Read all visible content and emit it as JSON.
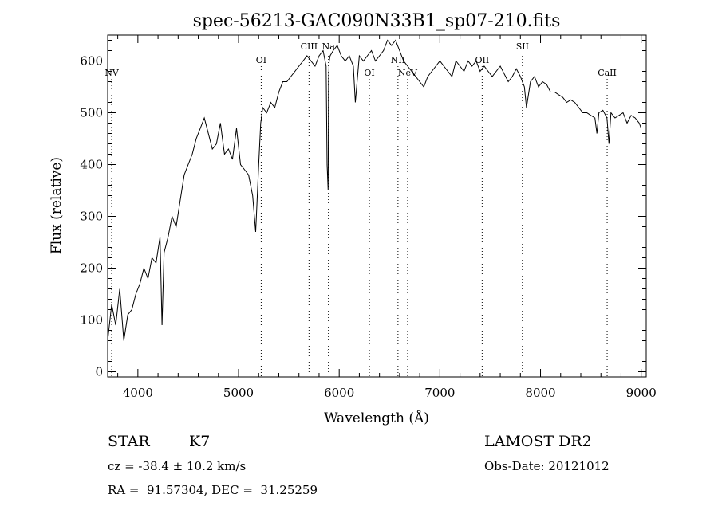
{
  "chart_data": {
    "type": "line",
    "title": "spec-56213-GAC090N33B1_sp07-210.fits",
    "xlabel": "Wavelength (Å)",
    "ylabel": "Flux (relative)",
    "xlim": [
      3700,
      9050
    ],
    "ylim": [
      -10,
      650
    ],
    "xticks": [
      4000,
      5000,
      6000,
      7000,
      8000,
      9000
    ],
    "yticks": [
      0,
      100,
      200,
      300,
      400,
      500,
      600
    ],
    "grid": false,
    "line_color": "#000000",
    "series": [
      {
        "x": [
          3700,
          3740,
          3780,
          3820,
          3860,
          3900,
          3940,
          3980,
          4020,
          4060,
          4100,
          4140,
          4180,
          4220,
          4240,
          4260,
          4300,
          4340,
          4380,
          4420,
          4460,
          4500,
          4540,
          4580,
          4620,
          4660,
          4700,
          4740,
          4780,
          4820,
          4860,
          4900,
          4940,
          4980,
          5020,
          5060,
          5100,
          5140,
          5170,
          5200,
          5220,
          5240,
          5280,
          5320,
          5360,
          5400,
          5440,
          5480,
          5520,
          5560,
          5600,
          5640,
          5680,
          5720,
          5760,
          5800,
          5840,
          5870,
          5880,
          5890,
          5895,
          5900,
          5910,
          5940,
          5980,
          6020,
          6060,
          6100,
          6140,
          6160,
          6200,
          6240,
          6280,
          6320,
          6360,
          6400,
          6440,
          6480,
          6520,
          6560,
          6600,
          6640,
          6680,
          6720,
          6760,
          6800,
          6840,
          6880,
          6920,
          6960,
          7000,
          7040,
          7080,
          7120,
          7160,
          7200,
          7240,
          7280,
          7320,
          7360,
          7400,
          7440,
          7480,
          7520,
          7560,
          7600,
          7640,
          7680,
          7720,
          7760,
          7800,
          7840,
          7860,
          7900,
          7940,
          7980,
          8020,
          8060,
          8100,
          8140,
          8180,
          8220,
          8260,
          8300,
          8340,
          8380,
          8420,
          8460,
          8500,
          8540,
          8560,
          8580,
          8620,
          8660,
          8680,
          8700,
          8740,
          8780,
          8820,
          8860,
          8900,
          8940,
          8980,
          9000
        ],
        "y": [
          60,
          130,
          90,
          160,
          60,
          110,
          120,
          150,
          170,
          200,
          180,
          220,
          210,
          260,
          90,
          230,
          260,
          300,
          280,
          330,
          380,
          400,
          420,
          450,
          470,
          490,
          460,
          430,
          440,
          480,
          420,
          430,
          410,
          470,
          400,
          390,
          380,
          340,
          270,
          400,
          480,
          510,
          500,
          520,
          510,
          540,
          560,
          560,
          570,
          580,
          590,
          600,
          610,
          600,
          590,
          610,
          620,
          590,
          400,
          350,
          560,
          600,
          610,
          620,
          630,
          610,
          600,
          610,
          590,
          520,
          610,
          600,
          610,
          620,
          600,
          610,
          620,
          640,
          630,
          640,
          620,
          600,
          590,
          580,
          570,
          560,
          550,
          570,
          580,
          590,
          600,
          590,
          580,
          570,
          600,
          590,
          580,
          600,
          590,
          600,
          580,
          590,
          580,
          570,
          580,
          590,
          575,
          560,
          570,
          585,
          570,
          550,
          510,
          560,
          570,
          550,
          560,
          555,
          540,
          540,
          535,
          530,
          520,
          525,
          520,
          510,
          500,
          500,
          495,
          490,
          460,
          500,
          505,
          490,
          440,
          500,
          490,
          495,
          500,
          480,
          495,
          490,
          480,
          470
        ]
      }
    ],
    "line_labels": [
      {
        "label": "NV",
        "x": 3740,
        "row": 2
      },
      {
        "label": "OI",
        "x": 5225,
        "row": 1
      },
      {
        "label": "CIII",
        "x": 5700,
        "row": 0
      },
      {
        "label": "Na",
        "x": 5893,
        "row": 0
      },
      {
        "label": "OI",
        "x": 6300,
        "row": 2
      },
      {
        "label": "NII",
        "x": 6584,
        "row": 1
      },
      {
        "label": "NeV",
        "x": 6680,
        "row": 2
      },
      {
        "label": "OII",
        "x": 7420,
        "row": 1
      },
      {
        "label": "SII",
        "x": 7820,
        "row": 0
      },
      {
        "label": "CaII",
        "x": 8662,
        "row": 2
      }
    ]
  },
  "info": {
    "object_class": "STAR",
    "subclass": "K7",
    "survey": "LAMOST DR2",
    "cz": "cz = -38.4 ± 10.2 km/s",
    "obs_date": "Obs-Date: 20121012",
    "coords": "RA =  91.57304, DEC =  31.25259"
  }
}
